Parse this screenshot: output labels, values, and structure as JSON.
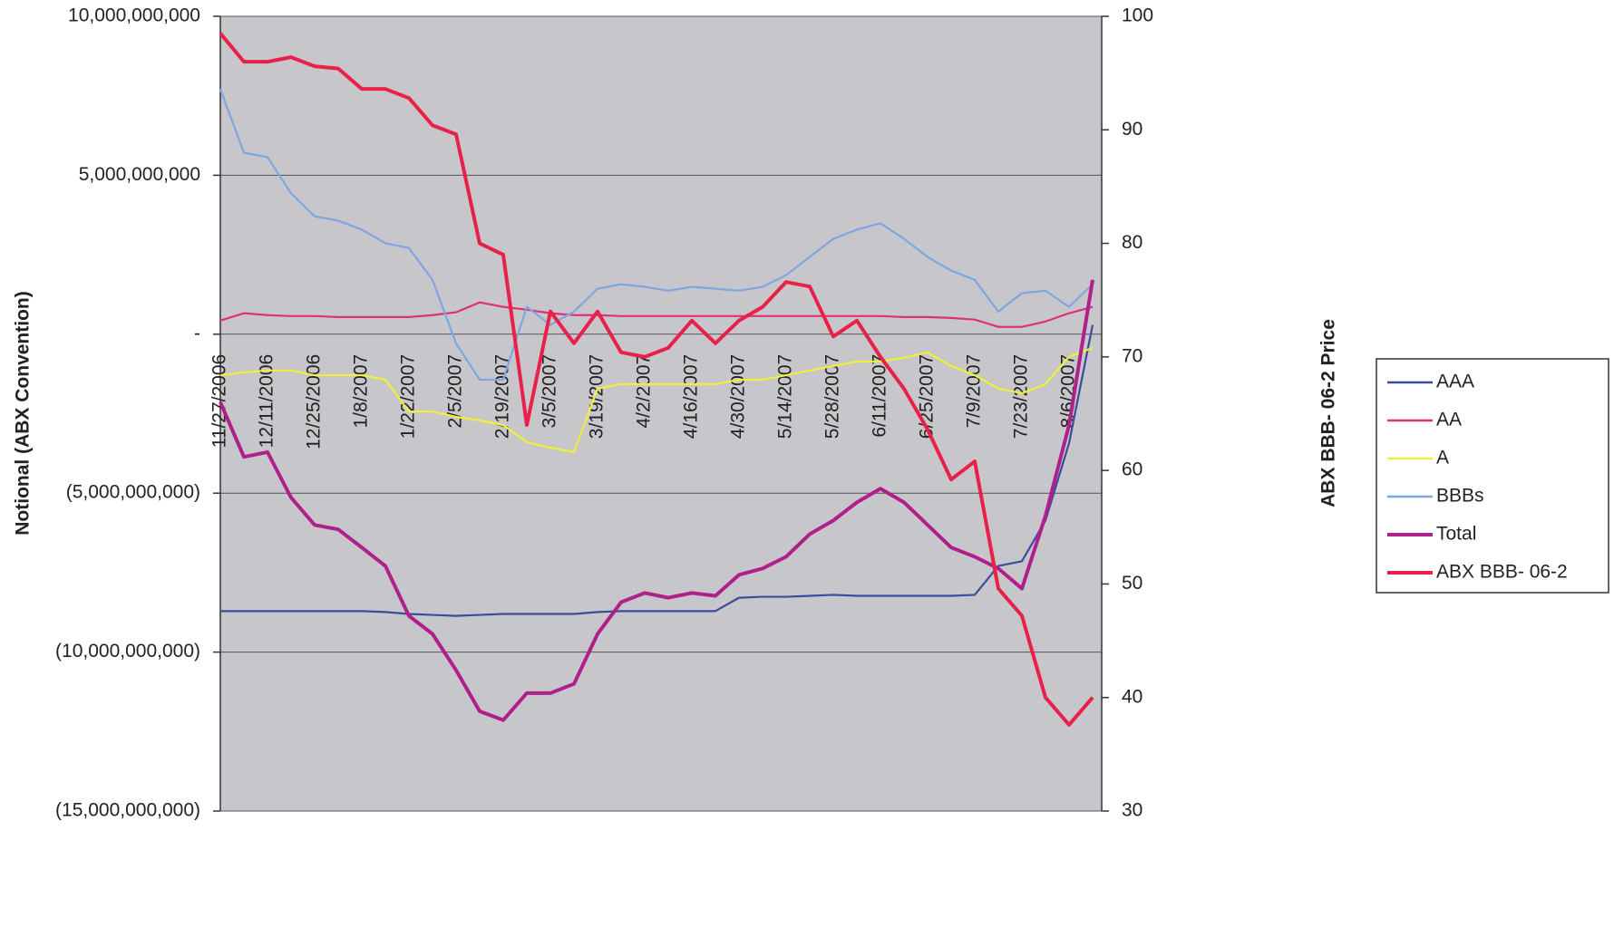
{
  "chart_data": {
    "type": "line",
    "y_label": "Notional (ABX Convention)",
    "y2_label": "ABX BBB- 06-2 Price",
    "categories": [
      "11/27/2006",
      null,
      "12/11/2006",
      null,
      "12/25/2006",
      null,
      "1/8/2007",
      null,
      "1/22/2007",
      null,
      "2/5/2007",
      null,
      "2/19/2007",
      null,
      "3/5/2007",
      null,
      "3/19/2007",
      null,
      "4/2/2007",
      null,
      "4/16/2007",
      null,
      "4/30/2007",
      null,
      "5/14/2007",
      null,
      "5/28/2007",
      null,
      "6/11/2007",
      null,
      "6/25/2007",
      null,
      "7/9/2007",
      null,
      "7/23/2007",
      null,
      "8/6/2007",
      null
    ],
    "ylim": [
      -15000000000,
      10000000000
    ],
    "yticks": [
      {
        "value": -15000000000,
        "label": "(15,000,000,000)"
      },
      {
        "value": -10000000000,
        "label": "(10,000,000,000)"
      },
      {
        "value": -5000000000,
        "label": "(5,000,000,000)"
      },
      {
        "value": 0,
        "label": "-"
      },
      {
        "value": 5000000000,
        "label": "5,000,000,000"
      },
      {
        "value": 10000000000,
        "label": "10,000,000,000"
      }
    ],
    "y2lim": [
      30,
      100
    ],
    "y2ticks": [
      30,
      40,
      50,
      60,
      70,
      80,
      90,
      100
    ],
    "grid": true,
    "legend": "right",
    "series": [
      {
        "name": "AAA",
        "color": "#3d4b9c",
        "values": [
          -8710000000,
          -8710000000,
          -8710000000,
          -8710000000,
          -8710000000,
          -8710000000,
          -8710000000,
          -8740000000,
          -8800000000,
          -8830000000,
          -8860000000,
          -8830000000,
          -8800000000,
          -8800000000,
          -8800000000,
          -8800000000,
          -8740000000,
          -8710000000,
          -8710000000,
          -8710000000,
          -8710000000,
          -8710000000,
          -8290000000,
          -8260000000,
          -8260000000,
          -8230000000,
          -8200000000,
          -8230000000,
          -8230000000,
          -8230000000,
          -8230000000,
          -8230000000,
          -8200000000,
          -7290000000,
          -7140000000,
          -5860000000,
          -3430000000,
          290000000
        ]
      },
      {
        "name": "AA",
        "color": "#e0307a",
        "values": [
          430000000,
          660000000,
          600000000,
          570000000,
          570000000,
          540000000,
          540000000,
          540000000,
          540000000,
          600000000,
          690000000,
          1000000000,
          860000000,
          770000000,
          660000000,
          600000000,
          600000000,
          570000000,
          570000000,
          570000000,
          570000000,
          570000000,
          570000000,
          570000000,
          570000000,
          570000000,
          570000000,
          570000000,
          570000000,
          540000000,
          540000000,
          510000000,
          460000000,
          230000000,
          230000000,
          400000000,
          660000000,
          860000000
        ]
      },
      {
        "name": "A",
        "color": "#eef03a",
        "values": [
          -1290000000,
          -1200000000,
          -1140000000,
          -1140000000,
          -1290000000,
          -1290000000,
          -1290000000,
          -1430000000,
          -2430000000,
          -2430000000,
          -2600000000,
          -2710000000,
          -2860000000,
          -3400000000,
          -3570000000,
          -3710000000,
          -1710000000,
          -1570000000,
          -1570000000,
          -1570000000,
          -1570000000,
          -1570000000,
          -1430000000,
          -1430000000,
          -1290000000,
          -1140000000,
          -1000000000,
          -860000000,
          -860000000,
          -740000000,
          -570000000,
          -1000000000,
          -1290000000,
          -1710000000,
          -1860000000,
          -1570000000,
          -710000000,
          -430000000
        ]
      },
      {
        "name": "BBBs",
        "color": "#7fa6e0",
        "values": [
          7710000000,
          5710000000,
          5570000000,
          4430000000,
          3710000000,
          3570000000,
          3290000000,
          2860000000,
          2710000000,
          1710000000,
          -290000000,
          -1430000000,
          -1430000000,
          860000000,
          290000000,
          710000000,
          1430000000,
          1570000000,
          1490000000,
          1370000000,
          1490000000,
          1430000000,
          1370000000,
          1490000000,
          1860000000,
          2430000000,
          3000000000,
          3290000000,
          3490000000,
          3000000000,
          2430000000,
          2000000000,
          1710000000,
          710000000,
          1290000000,
          1370000000,
          860000000,
          1570000000
        ]
      },
      {
        "name": "Total",
        "color": "#b0208c",
        "values": [
          -2140000000,
          -3860000000,
          -3710000000,
          -5140000000,
          -6000000000,
          -6140000000,
          -6710000000,
          -7290000000,
          -8860000000,
          -9430000000,
          -10570000000,
          -11860000000,
          -12140000000,
          -11290000000,
          -11290000000,
          -11000000000,
          -9430000000,
          -8430000000,
          -8140000000,
          -8290000000,
          -8140000000,
          -8230000000,
          -7570000000,
          -7370000000,
          -7000000000,
          -6290000000,
          -5860000000,
          -5290000000,
          -4860000000,
          -5290000000,
          -6000000000,
          -6710000000,
          -7000000000,
          -7370000000,
          -8000000000,
          -5710000000,
          -2860000000,
          1710000000
        ]
      },
      {
        "name": "ABX BBB- 06-2",
        "color": "#e8204a",
        "axis": "y2",
        "values": [
          98.5,
          96,
          96,
          96.4,
          95.6,
          95.4,
          93.6,
          93.6,
          92.8,
          90.4,
          89.6,
          80,
          79,
          64,
          74,
          71.2,
          74,
          70.4,
          70,
          70.8,
          73.2,
          71.2,
          73.2,
          74.4,
          76.6,
          76.2,
          71.8,
          73.2,
          70,
          67.2,
          63.6,
          59.2,
          60.8,
          49.6,
          47.2,
          40,
          37.6,
          40
        ]
      }
    ]
  }
}
